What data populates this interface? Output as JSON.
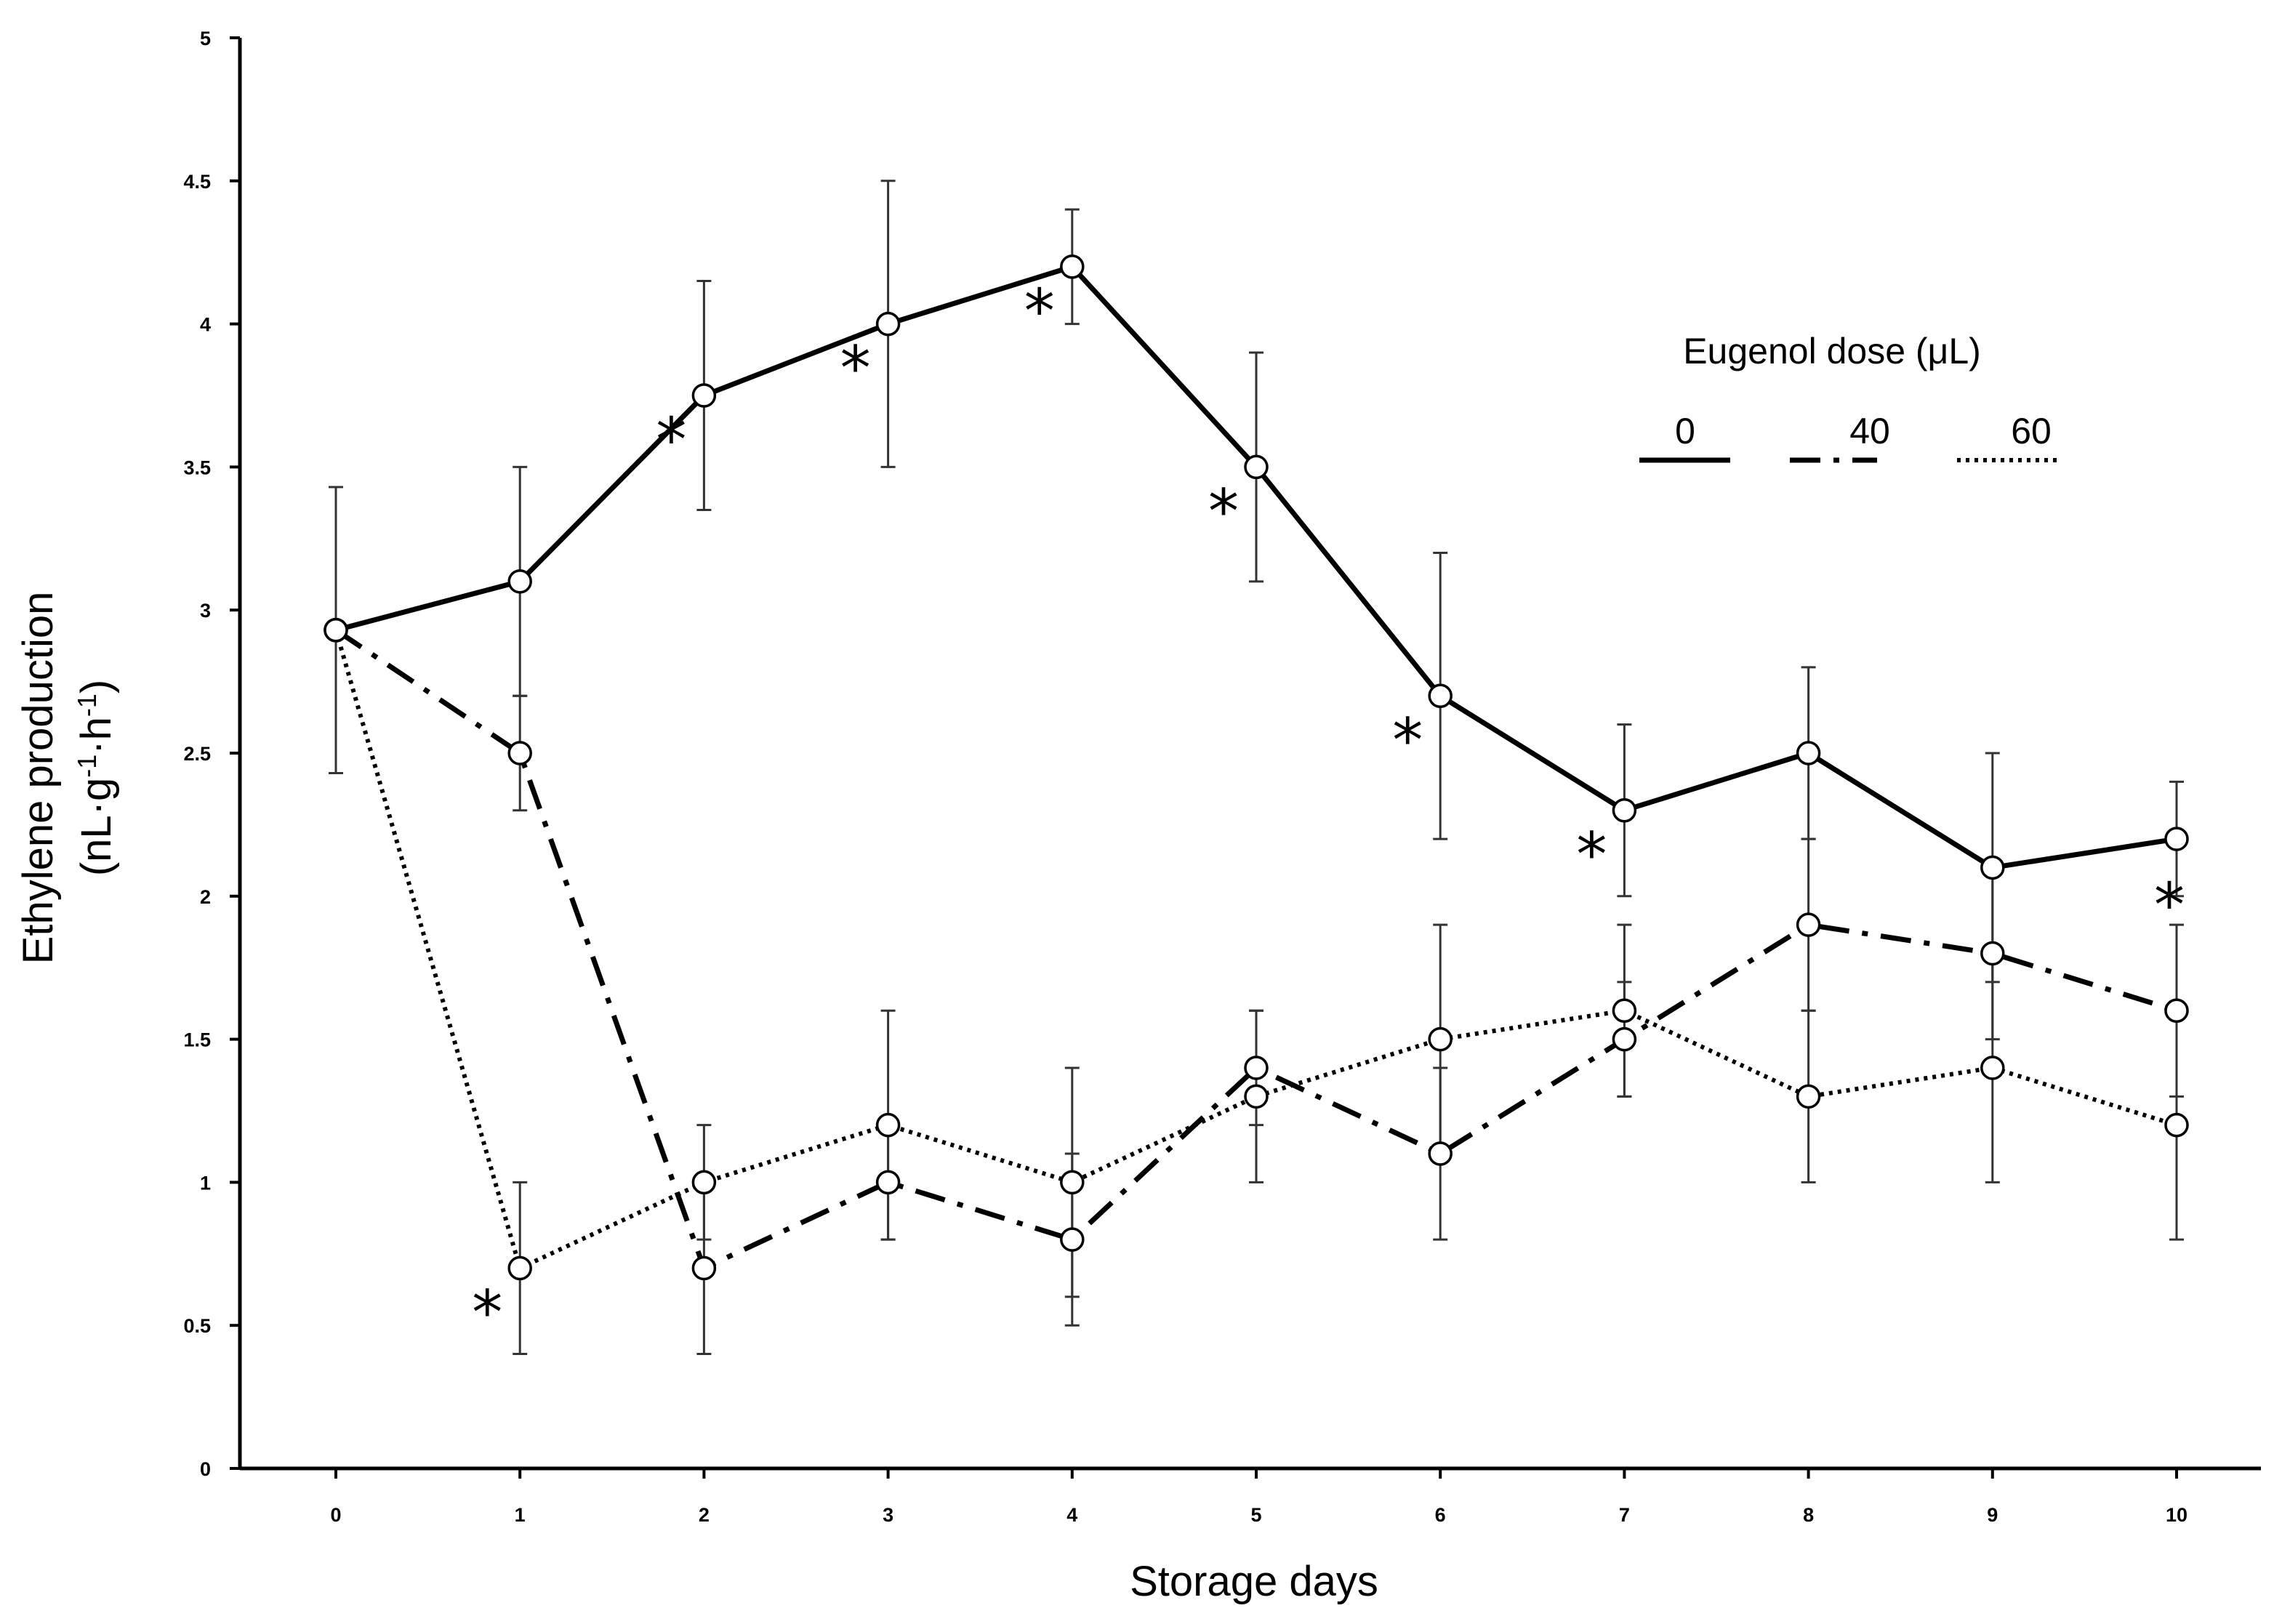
{
  "chart_data": {
    "type": "line",
    "title": "",
    "xlabel": "Storage days",
    "ylabel_line1": "Ethylene production",
    "ylabel_line2": {
      "prefix": "(nL·g",
      "sup1": "-1",
      "mid": "·h",
      "sup2": "-1",
      "suffix": ")"
    },
    "x": [
      0,
      1,
      2,
      3,
      4,
      5,
      6,
      7,
      8,
      9,
      10
    ],
    "x_tick_labels": [
      "0",
      "1",
      "2",
      "3",
      "4",
      "5",
      "6",
      "7",
      "8",
      "9",
      "10"
    ],
    "y_tick_labels": [
      "0",
      "0.5",
      "1",
      "1.5",
      "2",
      "2.5",
      "3",
      "3.5",
      "4",
      "4.5",
      "5"
    ],
    "xlim": [
      0,
      10
    ],
    "ylim": [
      0,
      5
    ],
    "grid": false,
    "legend": {
      "title": "Eugenol dose (μL)",
      "placement": "top-right",
      "entries": [
        "0",
        "40",
        "60"
      ]
    },
    "series": [
      {
        "name": "0",
        "line_style": "solid",
        "values": [
          2.93,
          3.1,
          3.75,
          4.0,
          4.2,
          3.5,
          2.7,
          2.3,
          2.5,
          2.1,
          2.2
        ],
        "error": [
          0.5,
          0.4,
          0.4,
          0.5,
          0.2,
          0.4,
          0.5,
          0.3,
          0.3,
          0.4,
          0.2
        ]
      },
      {
        "name": "40",
        "line_style": "dash-dot",
        "values": [
          2.93,
          2.5,
          0.7,
          1.0,
          0.8,
          1.4,
          1.1,
          1.5,
          1.9,
          1.8,
          1.6
        ],
        "error": [
          0.5,
          0.2,
          0.3,
          0.2,
          0.3,
          0.2,
          0.3,
          0.2,
          0.3,
          0.3,
          0.3
        ]
      },
      {
        "name": "60",
        "line_style": "dotted",
        "values": [
          2.93,
          0.7,
          1.0,
          1.2,
          1.0,
          1.3,
          1.5,
          1.6,
          1.3,
          1.4,
          1.2
        ],
        "error": [
          0.5,
          0.3,
          0.2,
          0.4,
          0.4,
          0.3,
          0.4,
          0.3,
          0.3,
          0.4,
          0.4
        ]
      }
    ],
    "significance_markers": [
      {
        "label": "*",
        "x": 1,
        "series": "60",
        "side": "left"
      },
      {
        "label": "*",
        "x": 2,
        "series": "0",
        "side": "left"
      },
      {
        "label": "*",
        "x": 3,
        "series": "0",
        "side": "left"
      },
      {
        "label": "*",
        "x": 4,
        "series": "0",
        "side": "left"
      },
      {
        "label": "*",
        "x": 5,
        "series": "0",
        "side": "left"
      },
      {
        "label": "*",
        "x": 6,
        "series": "0",
        "side": "left"
      },
      {
        "label": "*",
        "x": 7,
        "series": "0",
        "side": "left"
      },
      {
        "label": "*",
        "x": 10,
        "series": "0",
        "side": "below"
      }
    ]
  }
}
